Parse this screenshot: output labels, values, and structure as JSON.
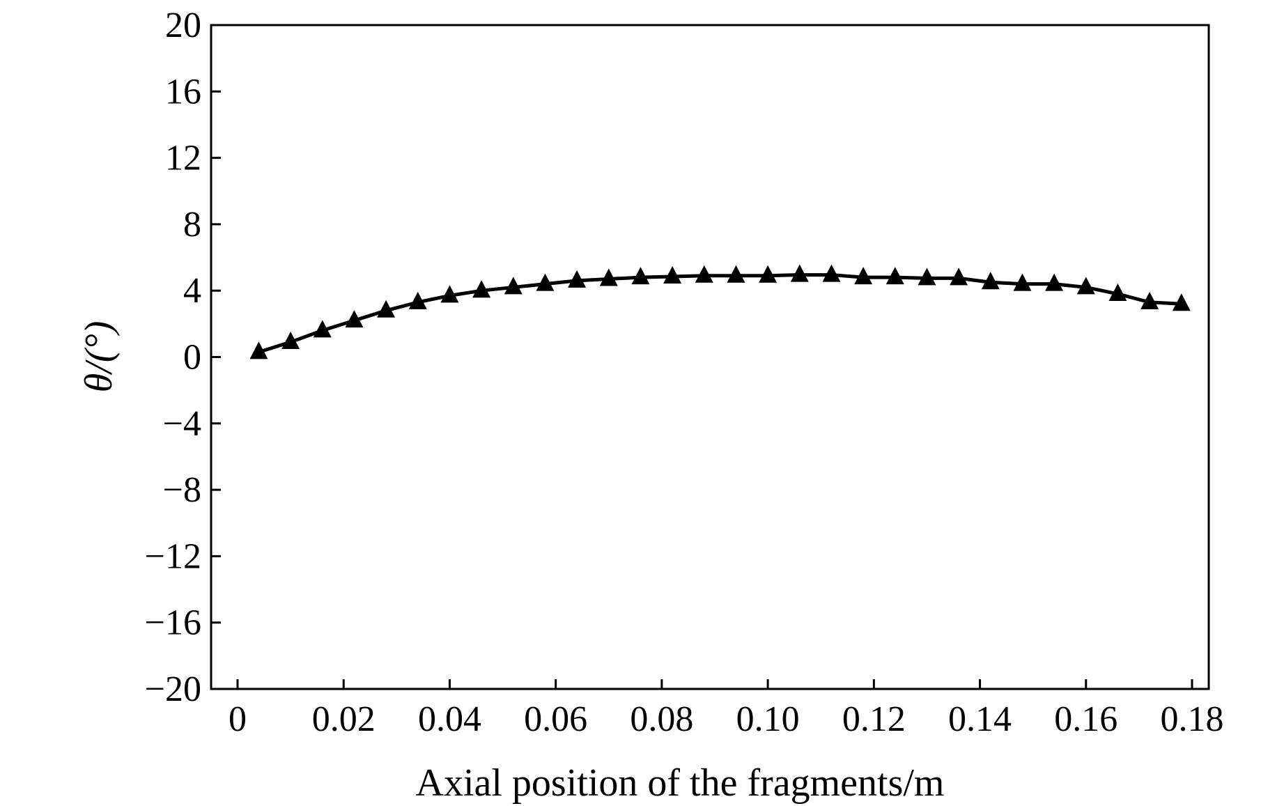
{
  "chart_data": {
    "type": "line",
    "title": "",
    "xlabel": "Axial position of the fragments/m",
    "ylabel": "θ/(°)",
    "xlim": [
      -0.005,
      0.183
    ],
    "ylim": [
      -20,
      20
    ],
    "xticks": [
      0,
      0.02,
      0.04,
      0.06,
      0.08,
      0.1,
      0.12,
      0.14,
      0.16,
      0.18
    ],
    "xtick_labels": [
      "0",
      "0.02",
      "0.04",
      "0.06",
      "0.08",
      "0.10",
      "0.12",
      "0.14",
      "0.16",
      "0.18"
    ],
    "yticks": [
      20,
      16,
      12,
      8,
      4,
      0,
      -4,
      -8,
      -12,
      -16,
      -20
    ],
    "ytick_labels": [
      "20",
      "16",
      "12",
      "8",
      "4",
      "0",
      "−4",
      "−8",
      "−12",
      "−16",
      "−20"
    ],
    "grid": false,
    "marker": "triangle",
    "color": "#000000",
    "series": [
      {
        "x": [
          0.004,
          0.01,
          0.016,
          0.022,
          0.028,
          0.034,
          0.04,
          0.046,
          0.052,
          0.058,
          0.064,
          0.07,
          0.076,
          0.082,
          0.088,
          0.094,
          0.1,
          0.106,
          0.112,
          0.118,
          0.124,
          0.13,
          0.136,
          0.142,
          0.148,
          0.154,
          0.16,
          0.166,
          0.172,
          0.178
        ],
        "y": [
          0.3,
          0.9,
          1.6,
          2.2,
          2.8,
          3.3,
          3.7,
          4.0,
          4.2,
          4.4,
          4.6,
          4.7,
          4.8,
          4.85,
          4.9,
          4.9,
          4.9,
          4.95,
          4.95,
          4.8,
          4.8,
          4.75,
          4.75,
          4.5,
          4.4,
          4.4,
          4.2,
          3.8,
          3.3,
          3.2
        ]
      }
    ]
  }
}
